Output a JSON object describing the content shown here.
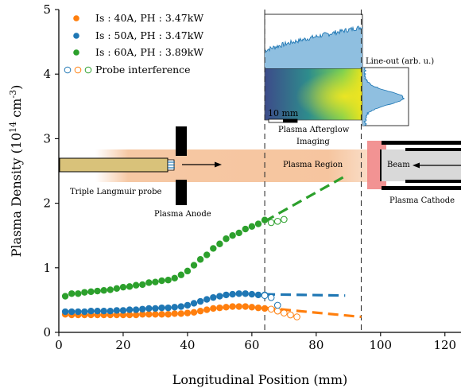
{
  "chart_data": {
    "type": "scatter",
    "xlabel": "Longitudinal Position (mm)",
    "ylabel": "Plasma Density (10^14 cm^-3)",
    "ylabel_parts": {
      "main": "Plasma Density (10",
      "exp1": "14",
      "mid": " cm",
      "exp2": "-3",
      "end": ")"
    },
    "xlim": [
      0,
      125
    ],
    "ylim": [
      0,
      5
    ],
    "x_ticks": [
      0,
      20,
      40,
      60,
      80,
      100,
      120
    ],
    "y_ticks": [
      0,
      1,
      2,
      3,
      4,
      5
    ],
    "legend_placement": "top-left",
    "series": [
      {
        "name": "I_s : 40A, P_H : 3.47kW",
        "legend_label": "Is : 40A, PH : 3.47kW",
        "color": "#ff7f0e",
        "x": [
          2,
          4,
          6,
          8,
          10,
          12,
          14,
          16,
          18,
          20,
          22,
          24,
          26,
          28,
          30,
          32,
          34,
          36,
          38,
          40,
          42,
          44,
          46,
          48,
          50,
          52,
          54,
          56,
          58,
          60,
          62,
          64
        ],
        "y": [
          0.28,
          0.27,
          0.27,
          0.27,
          0.27,
          0.27,
          0.27,
          0.27,
          0.27,
          0.27,
          0.27,
          0.27,
          0.28,
          0.28,
          0.28,
          0.28,
          0.28,
          0.29,
          0.29,
          0.3,
          0.31,
          0.33,
          0.35,
          0.37,
          0.38,
          0.39,
          0.4,
          0.4,
          0.4,
          0.39,
          0.38,
          0.37
        ],
        "interference_x": [
          66,
          68,
          70,
          72,
          74
        ],
        "interference_y": [
          0.36,
          0.33,
          0.3,
          0.27,
          0.24
        ],
        "fit": {
          "x": [
            64,
            94
          ],
          "y": [
            0.38,
            0.24
          ]
        }
      },
      {
        "name": "I_s : 50A, P_H : 3.47kW",
        "legend_label": "Is : 50A, PH : 3.47kW",
        "color": "#1f77b4",
        "x": [
          2,
          4,
          6,
          8,
          10,
          12,
          14,
          16,
          18,
          20,
          22,
          24,
          26,
          28,
          30,
          32,
          34,
          36,
          38,
          40,
          42,
          44,
          46,
          48,
          50,
          52,
          54,
          56,
          58,
          60,
          62,
          64
        ],
        "y": [
          0.32,
          0.32,
          0.32,
          0.32,
          0.33,
          0.33,
          0.33,
          0.33,
          0.34,
          0.34,
          0.35,
          0.35,
          0.36,
          0.37,
          0.37,
          0.38,
          0.38,
          0.39,
          0.4,
          0.42,
          0.45,
          0.48,
          0.51,
          0.54,
          0.56,
          0.58,
          0.59,
          0.6,
          0.6,
          0.59,
          0.58,
          0.58
        ],
        "interference_x": [
          64,
          66,
          68
        ],
        "interference_y": [
          0.57,
          0.54,
          0.42
        ],
        "fit": {
          "x": [
            64,
            89
          ],
          "y": [
            0.59,
            0.57
          ]
        }
      },
      {
        "name": "I_s : 60A, P_H : 3.89kW",
        "legend_label": "Is : 60A, PH : 3.89kW",
        "color": "#2ca02c",
        "x": [
          2,
          4,
          6,
          8,
          10,
          12,
          14,
          16,
          18,
          20,
          22,
          24,
          26,
          28,
          30,
          32,
          34,
          36,
          38,
          40,
          42,
          44,
          46,
          48,
          50,
          52,
          54,
          56,
          58,
          60,
          62,
          64
        ],
        "y": [
          0.56,
          0.6,
          0.6,
          0.62,
          0.63,
          0.64,
          0.65,
          0.66,
          0.68,
          0.7,
          0.71,
          0.73,
          0.74,
          0.77,
          0.78,
          0.8,
          0.81,
          0.84,
          0.89,
          0.95,
          1.04,
          1.13,
          1.2,
          1.3,
          1.37,
          1.45,
          1.5,
          1.54,
          1.6,
          1.64,
          1.68,
          1.74
        ],
        "interference_x": [
          66,
          68,
          70
        ],
        "interference_y": [
          1.7,
          1.72,
          1.75
        ],
        "fit": {
          "x": [
            64,
            89
          ],
          "y": [
            1.72,
            2.42
          ]
        }
      }
    ],
    "legend": {
      "entries": [
        {
          "label": "Is : 40A, PH : 3.47kW"
        },
        {
          "label": "Is : 50A, PH : 3.47kW"
        },
        {
          "label": "Is : 60A, PH : 3.89kW"
        }
      ],
      "probe_label": "Probe interference"
    },
    "vlines": [
      64,
      94
    ],
    "annotations": {
      "triple_probe": "Triple Langmuir probe",
      "plasma_anode": "Plasma Anode",
      "plasma_region": "Plasma Region",
      "beam": "Beam",
      "plasma_cathode": "Plasma Cathode",
      "afterglow_line1": "Plasma Afterglow",
      "afterglow_line2": "Imaging",
      "lineout": "Line-out (arb. u.)",
      "scale_bar": "10 mm"
    }
  }
}
